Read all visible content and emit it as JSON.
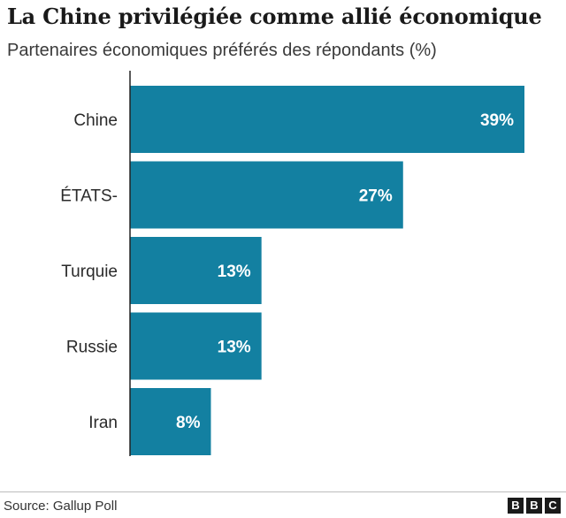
{
  "title": "La Chine privilégiée comme allié économique",
  "subtitle": "Partenaires économiques préférés des répondants (%)",
  "source": "Source: Gallup Poll",
  "logo": [
    "B",
    "B",
    "C"
  ],
  "colors": {
    "bar": "#1380A1",
    "axis": "#222222"
  },
  "chart_data": {
    "type": "bar",
    "orientation": "horizontal",
    "title": "La Chine privilégiée comme allié économique",
    "subtitle": "Partenaires économiques préférés des répondants (%)",
    "categories": [
      "Chine",
      "ÉTATS-",
      "Turquie",
      "Russie",
      "Iran"
    ],
    "values": [
      39,
      27,
      13,
      13,
      8
    ],
    "value_labels": [
      "39%",
      "27%",
      "13%",
      "13%",
      "8%"
    ],
    "xlim": [
      0,
      39
    ],
    "grid": false
  }
}
